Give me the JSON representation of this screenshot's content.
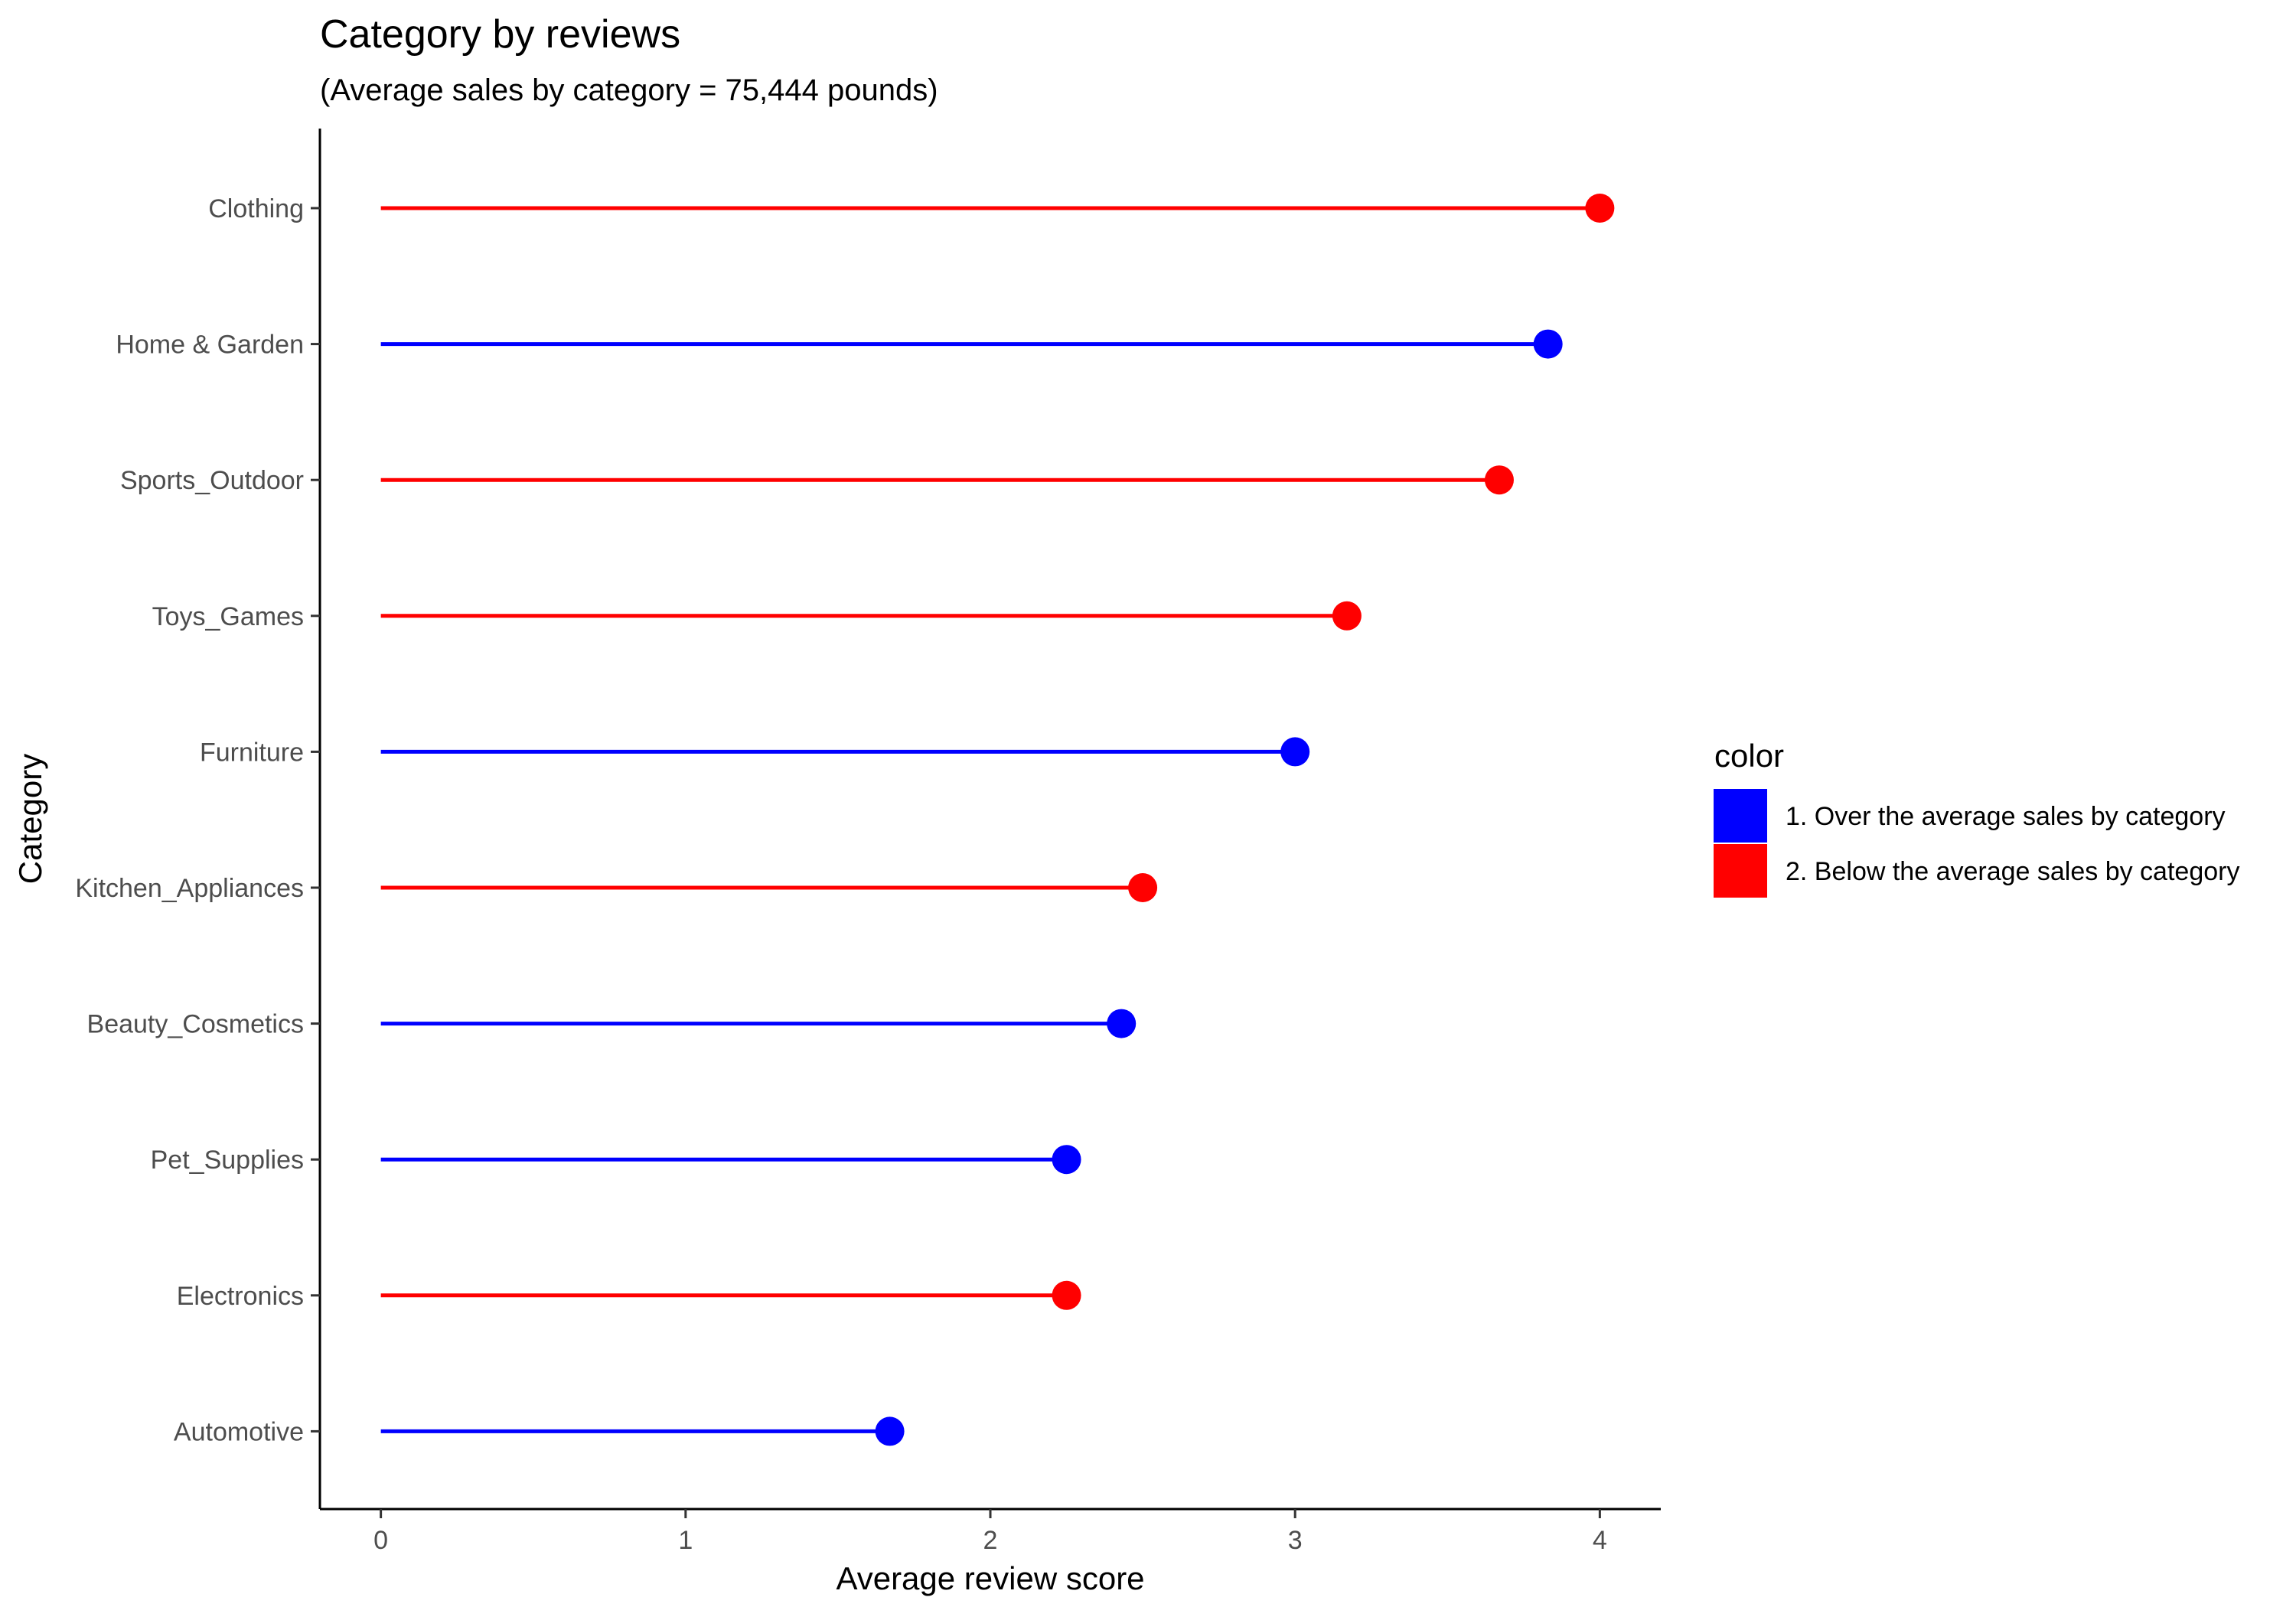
{
  "chart_data": {
    "type": "lollipop",
    "title": "Category by reviews",
    "subtitle": "(Average sales by category = 75,444 pounds)",
    "xlabel": "Average review score",
    "ylabel": "Category",
    "xlim": [
      -0.2,
      4.2
    ],
    "x_ticks": [
      "0",
      "1",
      "2",
      "3",
      "4"
    ],
    "grid": false,
    "legend": {
      "title": "color",
      "placement": "right",
      "items": [
        {
          "label": "1. Over the average sales by category",
          "color": "#0000FF"
        },
        {
          "label": "2. Below the average sales by category",
          "color": "#FF0000"
        }
      ]
    },
    "categories": [
      "Clothing",
      "Home & Garden",
      "Sports_Outdoor",
      "Toys_Games",
      "Furniture",
      "Kitchen_Appliances",
      "Beauty_Cosmetics",
      "Pet_Supplies",
      "Electronics",
      "Automotive"
    ],
    "values": [
      4.0,
      3.83,
      3.67,
      3.17,
      3.0,
      2.5,
      2.43,
      2.25,
      2.25,
      1.67
    ],
    "groups": [
      2,
      1,
      2,
      2,
      1,
      2,
      1,
      1,
      2,
      1
    ]
  }
}
